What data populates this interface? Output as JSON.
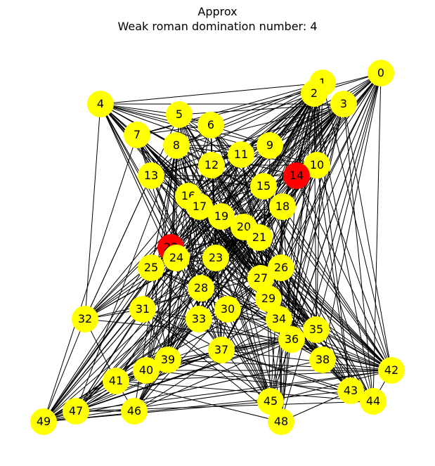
{
  "title": "Approx",
  "subtitle": "Weak roman domination number: 4",
  "colors": {
    "default_node": "#ffff00",
    "dominating_node": "#ff0000",
    "edge": "#000000"
  },
  "nodes": [
    {
      "id": "0",
      "color": "yellow"
    },
    {
      "id": "1",
      "color": "yellow"
    },
    {
      "id": "2",
      "color": "yellow"
    },
    {
      "id": "3",
      "color": "yellow"
    },
    {
      "id": "4",
      "color": "yellow"
    },
    {
      "id": "5",
      "color": "yellow"
    },
    {
      "id": "6",
      "color": "yellow"
    },
    {
      "id": "7",
      "color": "yellow"
    },
    {
      "id": "8",
      "color": "yellow"
    },
    {
      "id": "9",
      "color": "yellow"
    },
    {
      "id": "10",
      "color": "yellow"
    },
    {
      "id": "11",
      "color": "yellow"
    },
    {
      "id": "12",
      "color": "yellow"
    },
    {
      "id": "13",
      "color": "yellow"
    },
    {
      "id": "14",
      "color": "red"
    },
    {
      "id": "15",
      "color": "yellow"
    },
    {
      "id": "16",
      "color": "yellow"
    },
    {
      "id": "17",
      "color": "yellow"
    },
    {
      "id": "18",
      "color": "yellow"
    },
    {
      "id": "19",
      "color": "yellow"
    },
    {
      "id": "20",
      "color": "yellow"
    },
    {
      "id": "21",
      "color": "yellow"
    },
    {
      "id": "22",
      "color": "red"
    },
    {
      "id": "23",
      "color": "yellow"
    },
    {
      "id": "24",
      "color": "yellow"
    },
    {
      "id": "25",
      "color": "yellow"
    },
    {
      "id": "26",
      "color": "yellow"
    },
    {
      "id": "27",
      "color": "yellow"
    },
    {
      "id": "28",
      "color": "yellow"
    },
    {
      "id": "29",
      "color": "yellow"
    },
    {
      "id": "30",
      "color": "yellow"
    },
    {
      "id": "31",
      "color": "yellow"
    },
    {
      "id": "32",
      "color": "yellow"
    },
    {
      "id": "33",
      "color": "yellow"
    },
    {
      "id": "34",
      "color": "yellow"
    },
    {
      "id": "35",
      "color": "yellow"
    },
    {
      "id": "36",
      "color": "yellow"
    },
    {
      "id": "37",
      "color": "yellow"
    },
    {
      "id": "38",
      "color": "yellow"
    },
    {
      "id": "39",
      "color": "yellow"
    },
    {
      "id": "40",
      "color": "yellow"
    },
    {
      "id": "41",
      "color": "yellow"
    },
    {
      "id": "42",
      "color": "yellow"
    },
    {
      "id": "43",
      "color": "yellow"
    },
    {
      "id": "44",
      "color": "yellow"
    },
    {
      "id": "45",
      "color": "yellow"
    },
    {
      "id": "46",
      "color": "yellow"
    },
    {
      "id": "47",
      "color": "yellow"
    },
    {
      "id": "48",
      "color": "yellow"
    },
    {
      "id": "49",
      "color": "yellow"
    }
  ]
}
